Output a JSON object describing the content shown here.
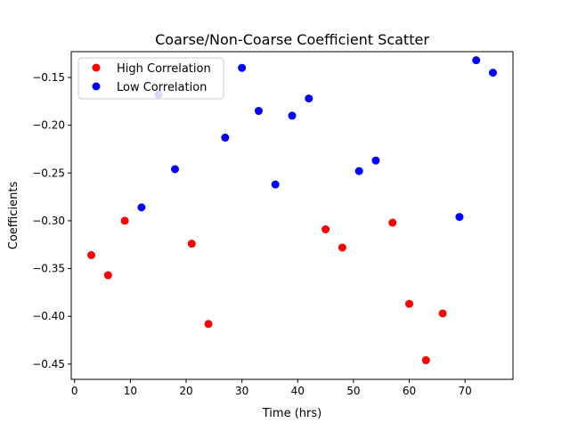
{
  "chart_data": {
    "type": "scatter",
    "title": "Coarse/Non-Coarse Coefficient Scatter",
    "xlabel": "Time (hrs)",
    "ylabel": "Coefficients",
    "xlim": [
      -0.6,
      78.6
    ],
    "ylim": [
      -0.466,
      -0.123
    ],
    "xticks": [
      0,
      10,
      20,
      30,
      40,
      50,
      60,
      70
    ],
    "yticks": [
      -0.45,
      -0.4,
      -0.35,
      -0.3,
      -0.25,
      -0.2,
      -0.15
    ],
    "xtick_labels": [
      "0",
      "10",
      "20",
      "30",
      "40",
      "50",
      "60",
      "70"
    ],
    "ytick_labels": [
      "−0.45",
      "−0.40",
      "−0.35",
      "−0.30",
      "−0.25",
      "−0.20",
      "−0.15"
    ],
    "grid": false,
    "legend_position": "top-left",
    "series": [
      {
        "name": "High Correlation",
        "color": "#ff0000",
        "points": [
          [
            3,
            -0.336
          ],
          [
            6,
            -0.357
          ],
          [
            9,
            -0.3
          ],
          [
            21,
            -0.324
          ],
          [
            24,
            -0.408
          ],
          [
            45,
            -0.309
          ],
          [
            48,
            -0.328
          ],
          [
            57,
            -0.302
          ],
          [
            60,
            -0.387
          ],
          [
            63,
            -0.446
          ],
          [
            66,
            -0.397
          ]
        ]
      },
      {
        "name": "Low Correlation",
        "color": "#0000ff",
        "points": [
          [
            12,
            -0.286
          ],
          [
            15,
            -0.168
          ],
          [
            18,
            -0.246
          ],
          [
            27,
            -0.213
          ],
          [
            30,
            -0.14
          ],
          [
            33,
            -0.185
          ],
          [
            36,
            -0.262
          ],
          [
            39,
            -0.19
          ],
          [
            42,
            -0.172
          ],
          [
            51,
            -0.248
          ],
          [
            54,
            -0.237
          ],
          [
            69,
            -0.296
          ],
          [
            72,
            -0.132
          ],
          [
            75,
            -0.145
          ]
        ]
      }
    ]
  }
}
